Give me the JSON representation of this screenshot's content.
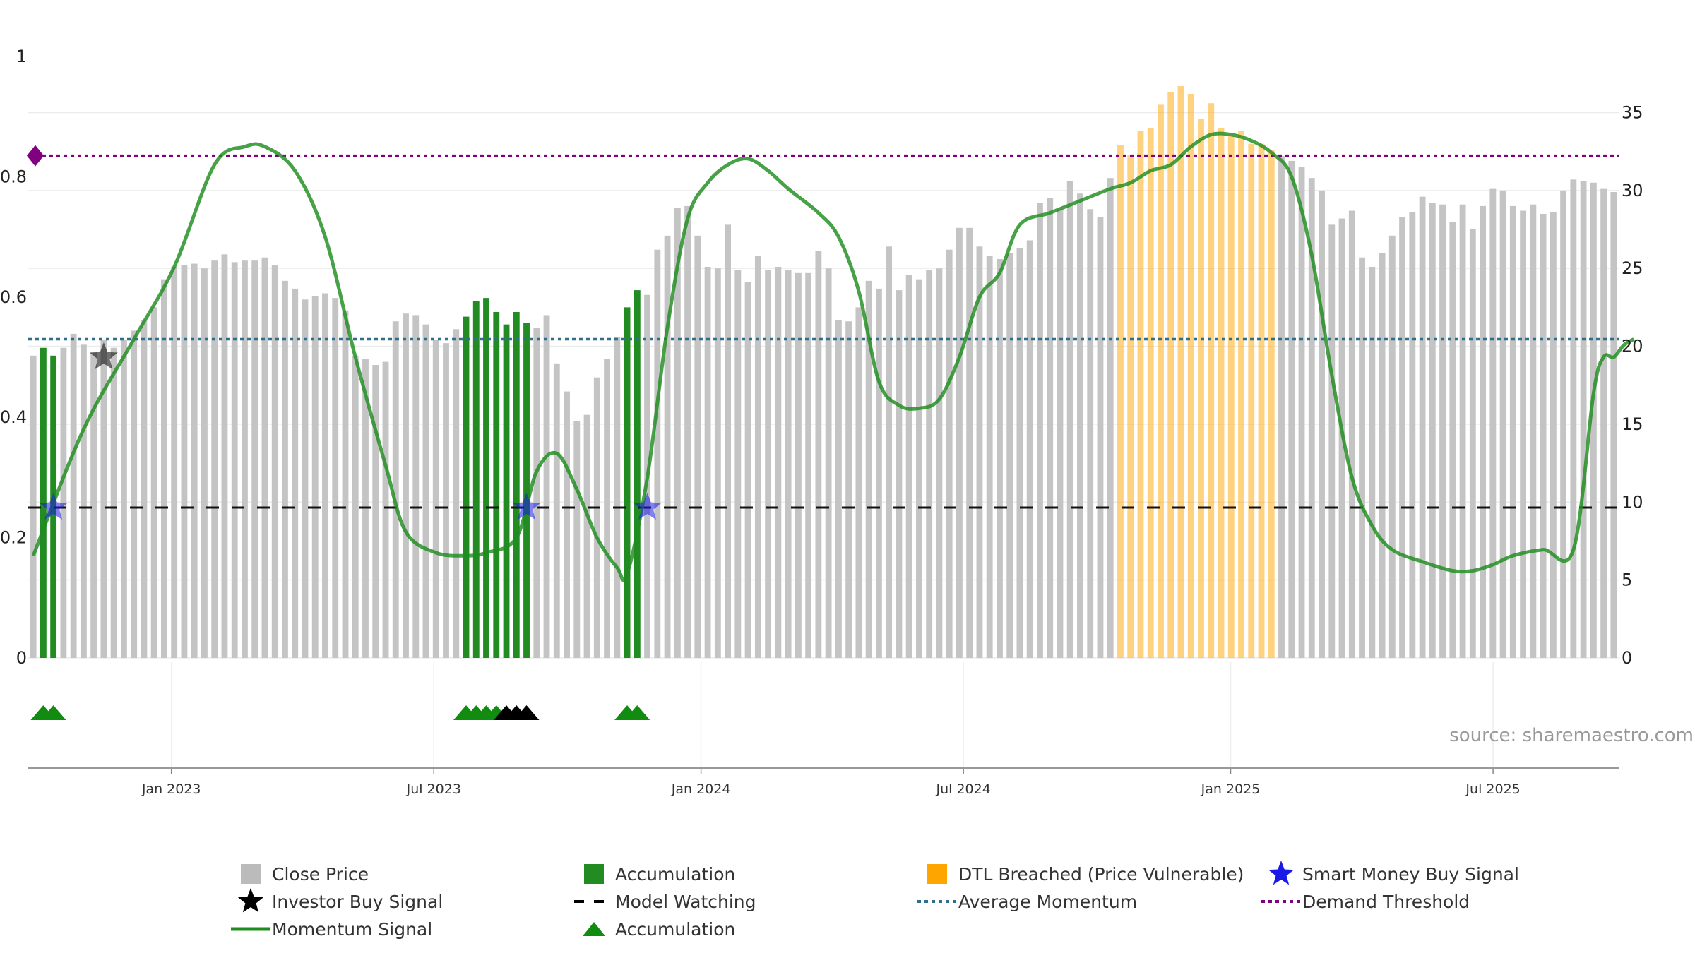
{
  "chart_data": {
    "type": "bar",
    "title": "",
    "xlabel": "",
    "ylabel": "",
    "source": "source: sharemaestro.com",
    "x_ticks": [
      "Jan 2023",
      "Jul 2023",
      "Jan 2024",
      "Jul 2024",
      "Jan 2025",
      "Jul 2025"
    ],
    "y_left_ticks": [
      "0",
      "0.2",
      "0.4",
      "0.6",
      "0.8",
      "1"
    ],
    "y_right_ticks": [
      "0",
      "5",
      "10",
      "15",
      "20",
      "25",
      "30",
      "35"
    ],
    "ylim_left": [
      0,
      1
    ],
    "ylim_right": [
      0,
      38.6
    ],
    "grid": true,
    "legend_position": "bottom",
    "series": [
      {
        "name": "Close Price",
        "axis": "right",
        "color": "#c4c4c4",
        "values": [
          19.4,
          19.9,
          19.4,
          19.9,
          20.8,
          20.1,
          19.6,
          20.4,
          19.9,
          20.4,
          21.0,
          21.7,
          22.5,
          24.3,
          25.1,
          25.2,
          25.3,
          25.0,
          25.5,
          25.9,
          25.4,
          25.5,
          25.5,
          25.7,
          25.2,
          24.2,
          23.7,
          23.0,
          23.2,
          23.4,
          23.1,
          22.3,
          19.4,
          19.2,
          18.8,
          19.0,
          21.6,
          22.1,
          22.0,
          21.4,
          20.4,
          20.2,
          21.1,
          21.9,
          22.9,
          23.1,
          22.2,
          21.4,
          22.2,
          21.5,
          21.2,
          22.0,
          18.9,
          17.1,
          15.2,
          15.6,
          18.0,
          19.2,
          20.6,
          22.5,
          23.6,
          23.3,
          26.2,
          27.1,
          28.9,
          29.0,
          27.1,
          25.1,
          25.0,
          27.8,
          24.9,
          24.1,
          25.8,
          24.9,
          25.1,
          24.9,
          24.7,
          24.7,
          26.1,
          25.0,
          21.7,
          21.6,
          22.5,
          24.2,
          23.7,
          26.4,
          23.6,
          24.6,
          24.3,
          24.9,
          25.0,
          26.2,
          27.6,
          27.6,
          26.4,
          25.8,
          25.6,
          26.0,
          26.3,
          26.8,
          29.2,
          29.5,
          28.8,
          30.6,
          29.8,
          28.8,
          28.3,
          30.8,
          32.9,
          32.3,
          33.8,
          34.0,
          35.5,
          36.3,
          36.7,
          36.2,
          34.6,
          35.6,
          34.0,
          33.5,
          33.8,
          33.0,
          33.0,
          32.6,
          32.2,
          31.9,
          31.5,
          30.8,
          30.0,
          27.8,
          28.2,
          28.7,
          25.7,
          25.1,
          26.0,
          27.1,
          28.3,
          28.6,
          29.6,
          29.2,
          29.1,
          28.0,
          29.1,
          27.5,
          29.0,
          30.1,
          30.0,
          29.0,
          28.7,
          29.1,
          28.5,
          28.6,
          30.0,
          30.7,
          30.6,
          30.5,
          30.1,
          29.9
        ]
      },
      {
        "name": "Accumulation",
        "style": "bar-highlight",
        "color": "#228b22",
        "bar_indices": [
          1,
          2,
          43,
          44,
          45,
          46,
          47,
          48,
          49,
          59,
          60
        ]
      },
      {
        "name": "DTL Breached (Price Vulnerable)",
        "style": "bar-highlight",
        "color": "#ffa500",
        "bar_indices": [
          108,
          109,
          110,
          111,
          112,
          113,
          114,
          115,
          116,
          117,
          118,
          119,
          120,
          121,
          122,
          123
        ]
      },
      {
        "name": "Momentum Signal",
        "axis": "left",
        "color": "#1e8c1e",
        "t": [
          0,
          5,
          10,
          14,
          18,
          21,
          23,
          26,
          29,
          32,
          35,
          37,
          40,
          43,
          45,
          48,
          50,
          52,
          54,
          56,
          58,
          59,
          61,
          63,
          65,
          67,
          69,
          71,
          73,
          75,
          78,
          80,
          82,
          84,
          86,
          88,
          90,
          92,
          94,
          96,
          98,
          101,
          104,
          107,
          109,
          111,
          113,
          115,
          117,
          119,
          121,
          123,
          125,
          127,
          129,
          131,
          133,
          135,
          138,
          141,
          143,
          145,
          147,
          150,
          153,
          155,
          156,
          157,
          158,
          159
        ],
        "values": [
          0.17,
          0.38,
          0.53,
          0.65,
          0.82,
          0.85,
          0.85,
          0.81,
          0.7,
          0.5,
          0.32,
          0.21,
          0.175,
          0.17,
          0.175,
          0.2,
          0.31,
          0.34,
          0.28,
          0.2,
          0.15,
          0.14,
          0.3,
          0.55,
          0.73,
          0.79,
          0.82,
          0.83,
          0.81,
          0.78,
          0.74,
          0.7,
          0.61,
          0.46,
          0.42,
          0.415,
          0.43,
          0.5,
          0.6,
          0.64,
          0.72,
          0.74,
          0.76,
          0.78,
          0.79,
          0.81,
          0.82,
          0.85,
          0.87,
          0.87,
          0.86,
          0.84,
          0.8,
          0.67,
          0.47,
          0.3,
          0.22,
          0.18,
          0.16,
          0.145,
          0.145,
          0.155,
          0.17,
          0.18,
          0.18,
          0.44,
          0.5,
          0.5,
          0.52,
          0.53
        ]
      },
      {
        "name": "Average Momentum",
        "style": "dotted",
        "color": "#2e6f8e",
        "value": 0.53
      },
      {
        "name": "Demand Threshold",
        "style": "dotted",
        "color": "#800080",
        "value": 0.835
      },
      {
        "name": "Model Watching",
        "style": "dashed",
        "color": "#111111",
        "value": 0.25
      },
      {
        "name": "Investor Buy Signal",
        "marker": "star",
        "color": "#111111",
        "points": [
          {
            "index": 7,
            "value": 0.5
          }
        ]
      },
      {
        "name": "Smart Money Buy Signal",
        "marker": "star",
        "color": "#1a1ae6",
        "points": [
          {
            "index": 2,
            "value": 0.25
          },
          {
            "index": 49,
            "value": 0.25
          },
          {
            "index": 61,
            "value": 0.25
          }
        ]
      },
      {
        "name": "Accumulation",
        "marker": "triangle",
        "color": "#118c11",
        "bar_indices": [
          1,
          2,
          43,
          44,
          45,
          46,
          59,
          60
        ]
      },
      {
        "name": "Investor Buy Signal",
        "marker": "triangle",
        "color": "#000000",
        "bar_indices": [
          47,
          48,
          49
        ]
      }
    ]
  },
  "legend": [
    {
      "label": "Close Price",
      "symbol": "square",
      "color": "#bbbbbb"
    },
    {
      "label": "Accumulation",
      "symbol": "square",
      "color": "#228b22"
    },
    {
      "label": "DTL Breached (Price Vulnerable)",
      "symbol": "square",
      "color": "#ffa500"
    },
    {
      "label": "Smart Money Buy Signal",
      "symbol": "star",
      "color": "#1a1ae6"
    },
    {
      "label": "Investor Buy Signal",
      "symbol": "star",
      "color": "#000000"
    },
    {
      "label": "Model Watching",
      "symbol": "dash",
      "color": "#000000"
    },
    {
      "label": "Average Momentum",
      "symbol": "dotted",
      "color": "#2e6f8e"
    },
    {
      "label": "Demand Threshold",
      "symbol": "dotted",
      "color": "#800080"
    },
    {
      "label": "Momentum Signal",
      "symbol": "line",
      "color": "#1e8c1e"
    },
    {
      "label": "Accumulation",
      "symbol": "triangle",
      "color": "#118c11"
    }
  ]
}
